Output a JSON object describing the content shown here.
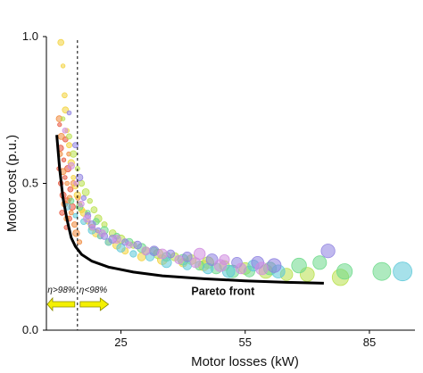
{
  "chart_data": {
    "type": "scatter",
    "xlabel": "Motor losses (kW)",
    "ylabel": "Motor cost (p.u.)",
    "xlim": [
      7,
      96
    ],
    "ylim": [
      0,
      1
    ],
    "xticks": [
      {
        "value": 25,
        "label": "25"
      },
      {
        "value": 55,
        "label": "55"
      },
      {
        "value": 85,
        "label": "85"
      }
    ],
    "yticks": [
      {
        "value": 0,
        "label": "0.0"
      },
      {
        "value": 0.5,
        "label": "0.5"
      },
      {
        "value": 1,
        "label": "1.0"
      }
    ],
    "grid": false,
    "threshold": {
      "x": 14.5,
      "left_label": "η>98%",
      "right_label": "η<98%",
      "arrow_color": "#f4f000"
    },
    "pareto_front": {
      "label": "Pareto front",
      "color": "#000000",
      "points": [
        [
          9.5,
          0.665
        ],
        [
          10.2,
          0.55
        ],
        [
          11,
          0.45
        ],
        [
          12,
          0.375
        ],
        [
          13,
          0.315
        ],
        [
          14,
          0.285
        ],
        [
          15.5,
          0.258
        ],
        [
          18,
          0.235
        ],
        [
          22,
          0.215
        ],
        [
          28,
          0.198
        ],
        [
          35,
          0.185
        ],
        [
          45,
          0.175
        ],
        [
          55,
          0.168
        ],
        [
          65,
          0.163
        ],
        [
          74,
          0.16
        ]
      ]
    },
    "series": [
      {
        "color": "#e8523a",
        "points": [
          [
            10,
            0.55
          ],
          [
            10.5,
            0.5
          ],
          [
            11,
            0.46
          ],
          [
            11.5,
            0.52
          ],
          [
            10.8,
            0.4
          ],
          [
            12,
            0.44
          ],
          [
            11.2,
            0.58
          ],
          [
            12.5,
            0.38
          ],
          [
            10.4,
            0.62
          ],
          [
            11.8,
            0.35
          ],
          [
            12.8,
            0.48
          ],
          [
            13.2,
            0.42
          ],
          [
            10.2,
            0.7
          ],
          [
            11.6,
            0.65
          ],
          [
            12.2,
            0.55
          ]
        ]
      },
      {
        "color": "#f08a3c",
        "points": [
          [
            10.3,
            0.6
          ],
          [
            11,
            0.54
          ],
          [
            12,
            0.5
          ],
          [
            12.6,
            0.45
          ],
          [
            11.4,
            0.43
          ],
          [
            13,
            0.4
          ],
          [
            13.8,
            0.36
          ],
          [
            10.6,
            0.66
          ],
          [
            12.4,
            0.6
          ],
          [
            11.9,
            0.38
          ],
          [
            14.2,
            0.33
          ],
          [
            15,
            0.3
          ],
          [
            13.5,
            0.5
          ],
          [
            10.1,
            0.72
          ],
          [
            14.6,
            0.45
          ]
        ]
      },
      {
        "color": "#f3d23a",
        "points": [
          [
            10.5,
            0.98
          ],
          [
            11,
            0.9
          ],
          [
            11.4,
            0.8
          ],
          [
            11.6,
            0.75
          ],
          [
            12,
            0.68
          ],
          [
            12.5,
            0.63
          ],
          [
            13,
            0.57
          ],
          [
            13.5,
            0.52
          ],
          [
            14,
            0.49
          ],
          [
            14.5,
            0.46
          ],
          [
            15,
            0.43
          ],
          [
            15.5,
            0.41
          ],
          [
            16,
            0.4
          ],
          [
            17,
            0.37
          ],
          [
            18,
            0.35
          ],
          [
            19,
            0.33
          ],
          [
            20,
            0.32
          ],
          [
            22,
            0.3
          ],
          [
            24,
            0.29
          ],
          [
            26,
            0.27
          ],
          [
            30,
            0.25
          ],
          [
            35,
            0.24
          ],
          [
            40,
            0.23
          ],
          [
            45,
            0.22
          ]
        ]
      },
      {
        "color": "#b8e04a",
        "points": [
          [
            11,
            0.72
          ],
          [
            12.5,
            0.66
          ],
          [
            13.5,
            0.6
          ],
          [
            14.5,
            0.55
          ],
          [
            15.5,
            0.5
          ],
          [
            16.5,
            0.47
          ],
          [
            17.5,
            0.44
          ],
          [
            18.5,
            0.41
          ],
          [
            19.5,
            0.38
          ],
          [
            21,
            0.36
          ],
          [
            23,
            0.33
          ],
          [
            25,
            0.31
          ],
          [
            28,
            0.29
          ],
          [
            31,
            0.27
          ],
          [
            34,
            0.26
          ],
          [
            38,
            0.25
          ],
          [
            42,
            0.24
          ],
          [
            46,
            0.23
          ],
          [
            50,
            0.22
          ],
          [
            55,
            0.21
          ],
          [
            60,
            0.2
          ],
          [
            65,
            0.19
          ],
          [
            70,
            0.19
          ],
          [
            78,
            0.18
          ]
        ]
      },
      {
        "color": "#6cd98a",
        "points": [
          [
            13,
            0.44
          ],
          [
            15,
            0.42
          ],
          [
            17,
            0.4
          ],
          [
            19,
            0.37
          ],
          [
            21,
            0.34
          ],
          [
            24,
            0.32
          ],
          [
            27,
            0.3
          ],
          [
            30,
            0.28
          ],
          [
            33,
            0.27
          ],
          [
            36,
            0.25
          ],
          [
            40,
            0.24
          ],
          [
            44,
            0.22
          ],
          [
            48,
            0.21
          ],
          [
            52,
            0.2
          ],
          [
            56,
            0.2
          ],
          [
            61,
            0.21
          ],
          [
            68,
            0.22
          ],
          [
            73,
            0.23
          ],
          [
            79,
            0.2
          ],
          [
            88,
            0.2
          ]
        ]
      },
      {
        "color": "#5cc8d8",
        "points": [
          [
            12,
            0.42
          ],
          [
            14,
            0.39
          ],
          [
            16,
            0.37
          ],
          [
            18,
            0.34
          ],
          [
            20,
            0.32
          ],
          [
            22,
            0.3
          ],
          [
            25,
            0.28
          ],
          [
            28,
            0.26
          ],
          [
            32,
            0.25
          ],
          [
            36,
            0.23
          ],
          [
            41,
            0.22
          ],
          [
            46,
            0.21
          ],
          [
            51,
            0.2
          ],
          [
            57,
            0.22
          ],
          [
            63,
            0.2
          ],
          [
            93,
            0.2
          ]
        ]
      },
      {
        "color": "#8d7fe0",
        "points": [
          [
            12.5,
            0.74
          ],
          [
            14,
            0.63
          ],
          [
            15,
            0.52
          ],
          [
            16,
            0.45
          ],
          [
            17,
            0.39
          ],
          [
            18,
            0.36
          ],
          [
            19.5,
            0.34
          ],
          [
            21,
            0.32
          ],
          [
            23,
            0.31
          ],
          [
            26,
            0.3
          ],
          [
            29,
            0.29
          ],
          [
            33,
            0.27
          ],
          [
            37,
            0.26
          ],
          [
            41,
            0.25
          ],
          [
            47,
            0.24
          ],
          [
            53,
            0.23
          ],
          [
            58,
            0.23
          ],
          [
            62,
            0.22
          ],
          [
            75,
            0.27
          ]
        ]
      },
      {
        "color": "#d08de0",
        "points": [
          [
            11.5,
            0.68
          ],
          [
            13,
            0.56
          ],
          [
            14.2,
            0.5
          ],
          [
            15.4,
            0.43
          ],
          [
            16.8,
            0.38
          ],
          [
            18.2,
            0.35
          ],
          [
            20.5,
            0.33
          ],
          [
            24,
            0.31
          ],
          [
            27,
            0.29
          ],
          [
            31,
            0.27
          ],
          [
            35,
            0.26
          ],
          [
            39,
            0.24
          ],
          [
            43,
            0.23
          ],
          [
            49,
            0.22
          ],
          [
            54,
            0.21
          ],
          [
            59,
            0.21
          ],
          [
            44,
            0.26
          ],
          [
            50,
            0.24
          ]
        ]
      }
    ]
  }
}
